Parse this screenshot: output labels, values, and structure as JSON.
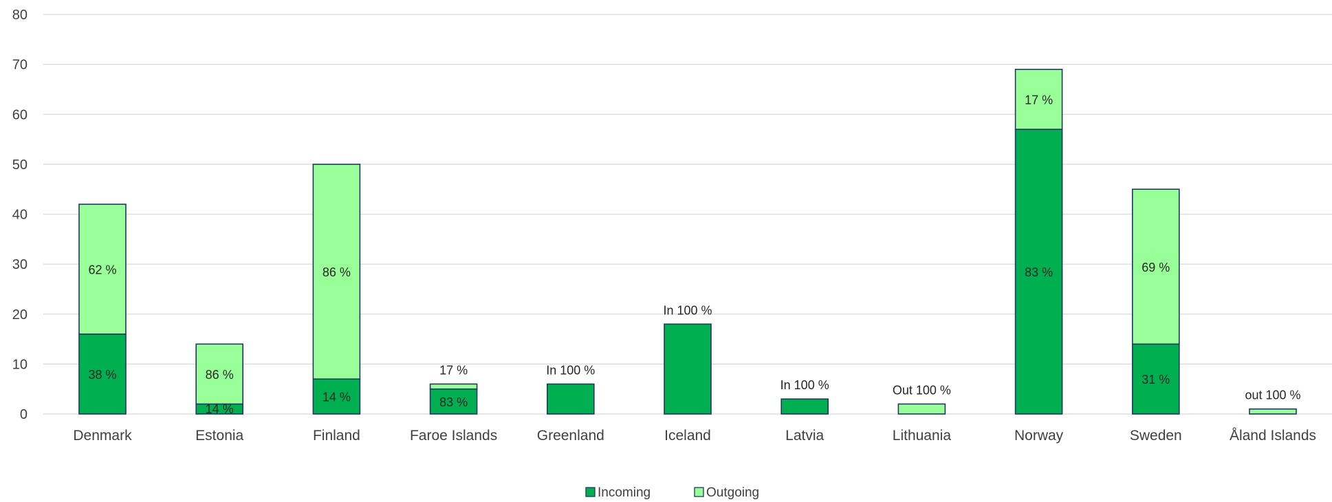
{
  "chart_data": {
    "type": "bar",
    "stacked": true,
    "title": "",
    "xlabel": "",
    "ylabel": "",
    "ylim": [
      0,
      80
    ],
    "yticks": [
      0,
      10,
      20,
      30,
      40,
      50,
      60,
      70,
      80
    ],
    "grid": true,
    "legend_position": "bottom",
    "categories": [
      "Denmark",
      "Estonia",
      "Finland",
      "Faroe Islands",
      "Greenland",
      "Iceland",
      "Latvia",
      "Lithuania",
      "Norway",
      "Sweden",
      "Åland Islands"
    ],
    "series": [
      {
        "name": "Incoming",
        "color": "#00b050",
        "values": [
          16,
          2,
          7,
          5,
          6,
          18,
          3,
          0,
          57,
          14,
          0
        ],
        "labels": [
          "38 %",
          "14 %",
          "14 %",
          "83 %",
          "",
          "",
          "",
          "",
          "83 %",
          "31 %",
          ""
        ]
      },
      {
        "name": "Outgoing",
        "color": "#99ff99",
        "values": [
          26,
          12,
          43,
          1,
          0,
          0,
          0,
          2,
          12,
          31,
          1
        ],
        "labels": [
          "62 %",
          "86 %",
          "86 %",
          "",
          "",
          "",
          "",
          "",
          "17 %",
          "69 %",
          ""
        ]
      }
    ],
    "top_labels": [
      "",
      "",
      "",
      "17 %",
      "In 100 %",
      "In 100 %",
      "In 100 %",
      "Out 100 %",
      "",
      "",
      "out 100 %"
    ],
    "bar_edge_color": "#1f3864",
    "grid_color": "#d9d9d9"
  }
}
